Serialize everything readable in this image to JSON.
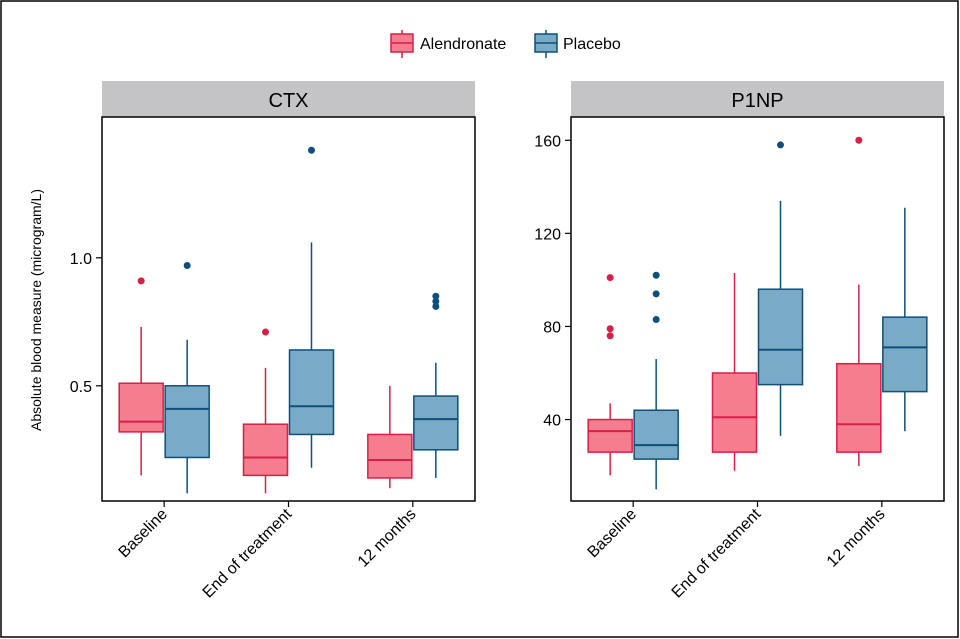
{
  "figure": {
    "ylabel": "Absolute blood measure (microgram/L)",
    "legend": {
      "position": "top-center",
      "items": [
        {
          "label": "Alendronate",
          "fill": "#f47d8e",
          "stroke": "#d81f48"
        },
        {
          "label": "Placebo",
          "fill": "#79aac6",
          "stroke": "#0e4f7b"
        }
      ]
    }
  },
  "chart_data": [
    {
      "type": "box",
      "title": "CTX",
      "categories": [
        "Baseline",
        "End of treatment",
        "12 months"
      ],
      "ylim": [
        0.05,
        1.55
      ],
      "yticks": [
        0.5,
        1.0
      ],
      "ytick_labels": [
        "0.5",
        "1.0"
      ],
      "series": [
        {
          "name": "Alendronate",
          "boxes": [
            {
              "min": 0.15,
              "q1": 0.32,
              "median": 0.36,
              "q3": 0.51,
              "max": 0.73,
              "outliers": [
                0.91
              ]
            },
            {
              "min": 0.08,
              "q1": 0.15,
              "median": 0.22,
              "q3": 0.35,
              "max": 0.57,
              "outliers": [
                0.71
              ]
            },
            {
              "min": 0.1,
              "q1": 0.14,
              "median": 0.21,
              "q3": 0.31,
              "max": 0.5,
              "outliers": []
            }
          ]
        },
        {
          "name": "Placebo",
          "boxes": [
            {
              "min": 0.08,
              "q1": 0.22,
              "median": 0.41,
              "q3": 0.5,
              "max": 0.68,
              "outliers": [
                0.97
              ]
            },
            {
              "min": 0.18,
              "q1": 0.31,
              "median": 0.42,
              "q3": 0.64,
              "max": 1.06,
              "outliers": [
                1.42
              ]
            },
            {
              "min": 0.14,
              "q1": 0.25,
              "median": 0.37,
              "q3": 0.46,
              "max": 0.59,
              "outliers": [
                0.81,
                0.83,
                0.85
              ]
            }
          ]
        }
      ]
    },
    {
      "type": "box",
      "title": "P1NP",
      "categories": [
        "Baseline",
        "End of treatment",
        "12 months"
      ],
      "ylim": [
        5,
        170
      ],
      "yticks": [
        40,
        80,
        120,
        160
      ],
      "ytick_labels": [
        "40",
        "80",
        "120",
        "160"
      ],
      "series": [
        {
          "name": "Alendronate",
          "boxes": [
            {
              "min": 16,
              "q1": 26,
              "median": 35,
              "q3": 40,
              "max": 47,
              "outliers": [
                76,
                79,
                101
              ]
            },
            {
              "min": 18,
              "q1": 26,
              "median": 41,
              "q3": 60,
              "max": 103,
              "outliers": []
            },
            {
              "min": 20,
              "q1": 26,
              "median": 38,
              "q3": 64,
              "max": 98,
              "outliers": [
                160
              ]
            }
          ]
        },
        {
          "name": "Placebo",
          "boxes": [
            {
              "min": 10,
              "q1": 23,
              "median": 29,
              "q3": 44,
              "max": 66,
              "outliers": [
                83,
                94,
                102
              ]
            },
            {
              "min": 33,
              "q1": 55,
              "median": 70,
              "q3": 96,
              "max": 134,
              "outliers": [
                158
              ]
            },
            {
              "min": 35,
              "q1": 52,
              "median": 71,
              "q3": 84,
              "max": 131,
              "outliers": []
            }
          ]
        }
      ]
    }
  ]
}
